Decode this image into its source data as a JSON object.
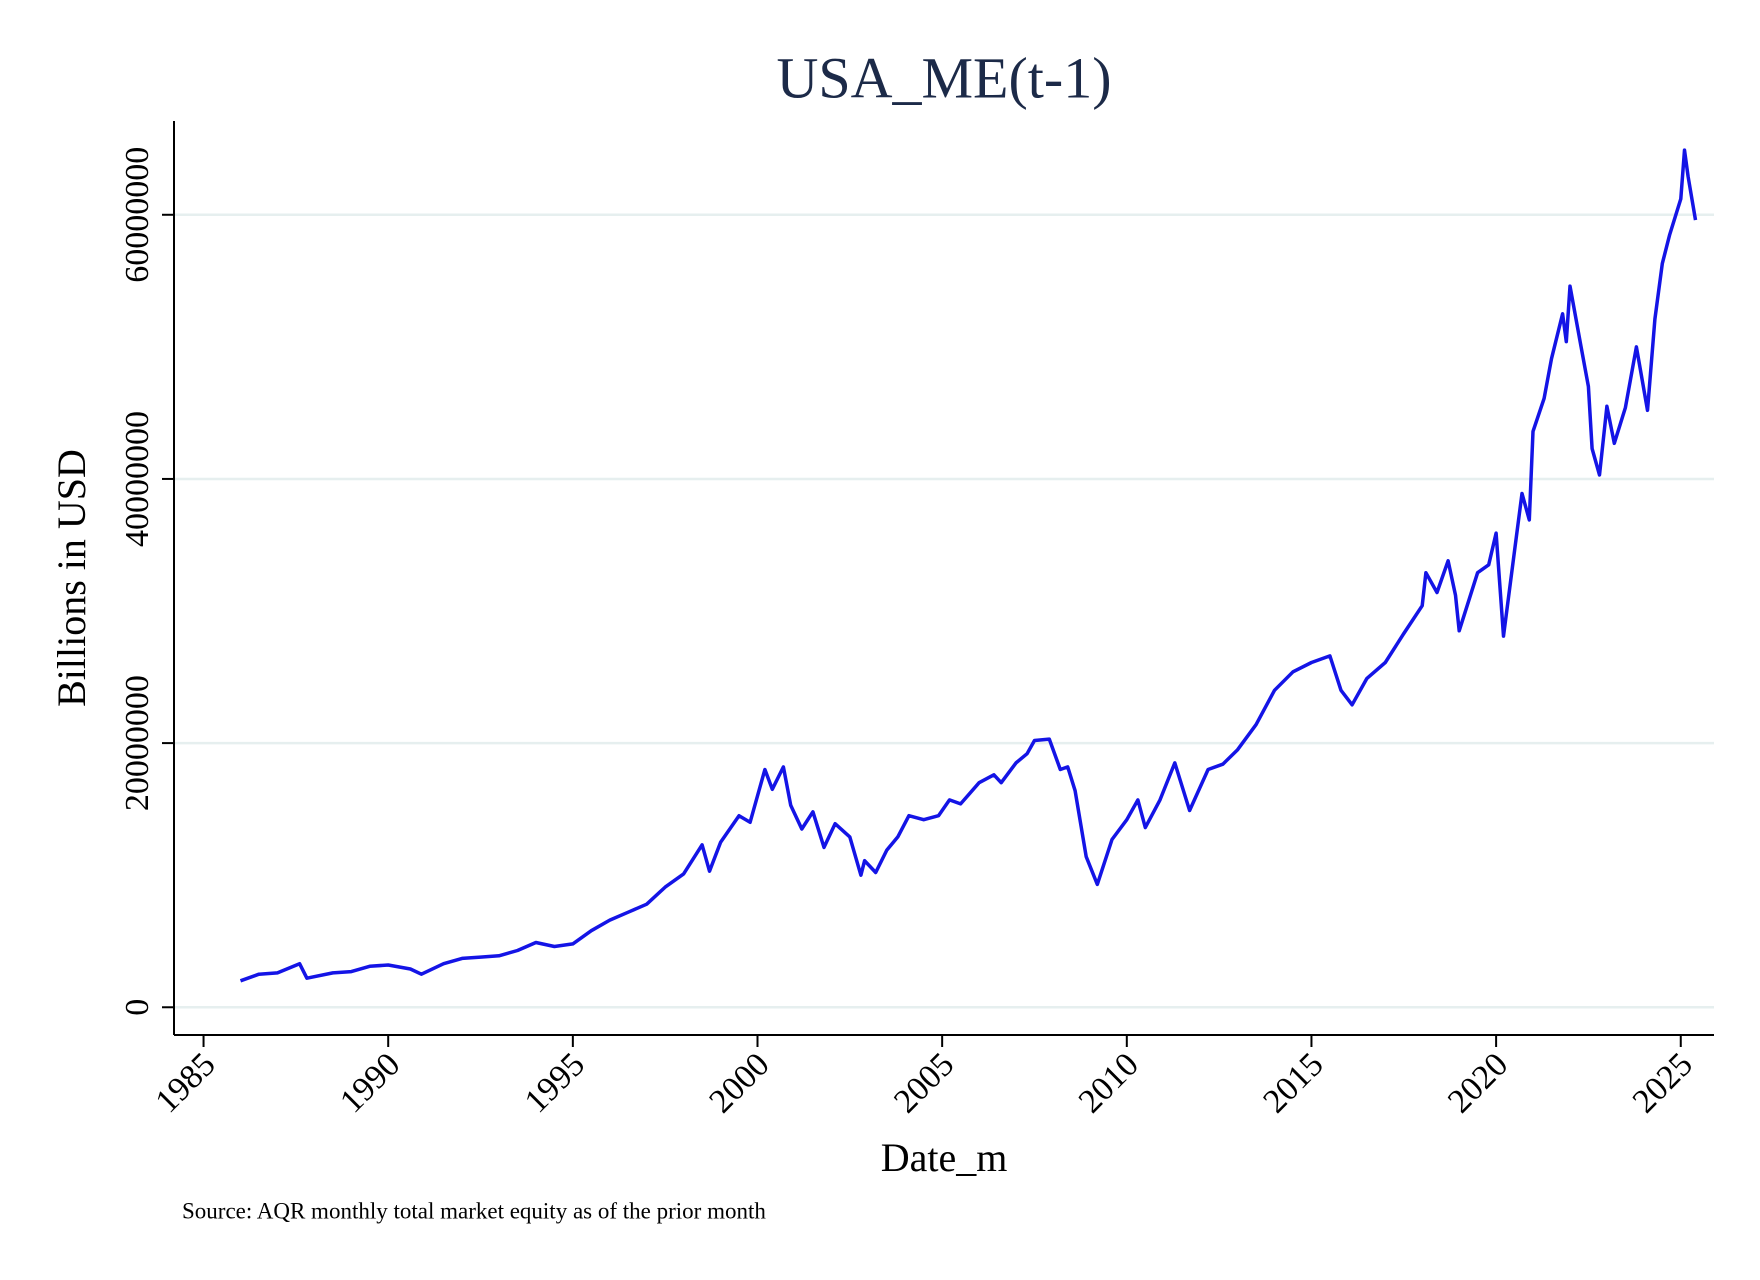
{
  "chart_data": {
    "type": "line",
    "title": "USA_ME(t-1)",
    "x_label": "Date_m",
    "y_label": "Billions in USD",
    "note": "Source: AQR monthly total market equity as of the prior month",
    "color": "#1414e6",
    "grid": true,
    "xlim": [
      1984.2,
      2025.9
    ],
    "xticks": [
      1985,
      1990,
      1995,
      2000,
      2005,
      2010,
      2015,
      2020,
      2025
    ],
    "ylim": [
      -2100000,
      67100000
    ],
    "yticks": [
      0,
      20000000,
      40000000,
      60000000
    ],
    "x": [
      1986.0,
      1986.5,
      1987.0,
      1987.6,
      1987.8,
      1988.5,
      1989.0,
      1989.5,
      1990.0,
      1990.6,
      1990.9,
      1991.5,
      1992.0,
      1992.5,
      1993.0,
      1993.5,
      1994.0,
      1994.5,
      1995.0,
      1995.5,
      1996.0,
      1996.5,
      1997.0,
      1997.5,
      1998.0,
      1998.5,
      1998.7,
      1999.0,
      1999.5,
      1999.8,
      2000.2,
      2000.4,
      2000.7,
      2000.9,
      2001.2,
      2001.5,
      2001.8,
      2002.1,
      2002.5,
      2002.8,
      2002.9,
      2003.2,
      2003.5,
      2003.8,
      2004.1,
      2004.5,
      2004.9,
      2005.2,
      2005.5,
      2006.0,
      2006.4,
      2006.6,
      2007.0,
      2007.3,
      2007.5,
      2007.9,
      2008.2,
      2008.4,
      2008.6,
      2008.9,
      2009.2,
      2009.6,
      2010.0,
      2010.3,
      2010.5,
      2010.9,
      2011.3,
      2011.7,
      2012.2,
      2012.6,
      2013.0,
      2013.5,
      2014.0,
      2014.5,
      2015.0,
      2015.5,
      2015.8,
      2016.1,
      2016.5,
      2017.0,
      2017.5,
      2018.0,
      2018.1,
      2018.4,
      2018.7,
      2018.9,
      2019.0,
      2019.5,
      2019.8,
      2020.0,
      2020.2,
      2020.5,
      2020.7,
      2020.9,
      2021.0,
      2021.3,
      2021.5,
      2021.8,
      2021.9,
      2022.0,
      2022.3,
      2022.5,
      2022.6,
      2022.8,
      2023.0,
      2023.2,
      2023.5,
      2023.8,
      2024.1,
      2024.3,
      2024.5,
      2024.7,
      2025.0,
      2025.1,
      2025.2,
      2025.4
    ],
    "values": [
      2000000,
      2500000,
      2600000,
      3300000,
      2200000,
      2600000,
      2700000,
      3100000,
      3200000,
      2900000,
      2500000,
      3300000,
      3700000,
      3800000,
      3900000,
      4300000,
      4900000,
      4600000,
      4800000,
      5800000,
      6600000,
      7200000,
      7800000,
      9100000,
      10100000,
      12300000,
      10300000,
      12500000,
      14500000,
      14000000,
      18000000,
      16500000,
      18200000,
      15300000,
      13500000,
      14800000,
      12100000,
      13900000,
      12900000,
      10000000,
      11100000,
      10200000,
      11900000,
      12900000,
      14500000,
      14200000,
      14500000,
      15700000,
      15400000,
      17000000,
      17600000,
      17000000,
      18500000,
      19200000,
      20200000,
      20300000,
      18000000,
      18200000,
      16400000,
      11400000,
      9300000,
      12700000,
      14200000,
      15700000,
      13600000,
      15700000,
      18500000,
      14900000,
      18000000,
      18400000,
      19500000,
      21400000,
      24000000,
      25400000,
      26100000,
      26600000,
      24000000,
      22900000,
      24900000,
      26100000,
      28300000,
      30400000,
      32900000,
      31400000,
      33800000,
      31200000,
      28500000,
      32900000,
      33500000,
      35900000,
      28100000,
      34600000,
      38900000,
      36900000,
      43600000,
      46100000,
      49100000,
      52500000,
      50400000,
      54600000,
      50000000,
      47000000,
      42300000,
      40300000,
      45500000,
      42700000,
      45400000,
      50000000,
      45200000,
      52100000,
      56300000,
      58500000,
      61200000,
      64900000,
      62900000,
      59600000
    ]
  }
}
